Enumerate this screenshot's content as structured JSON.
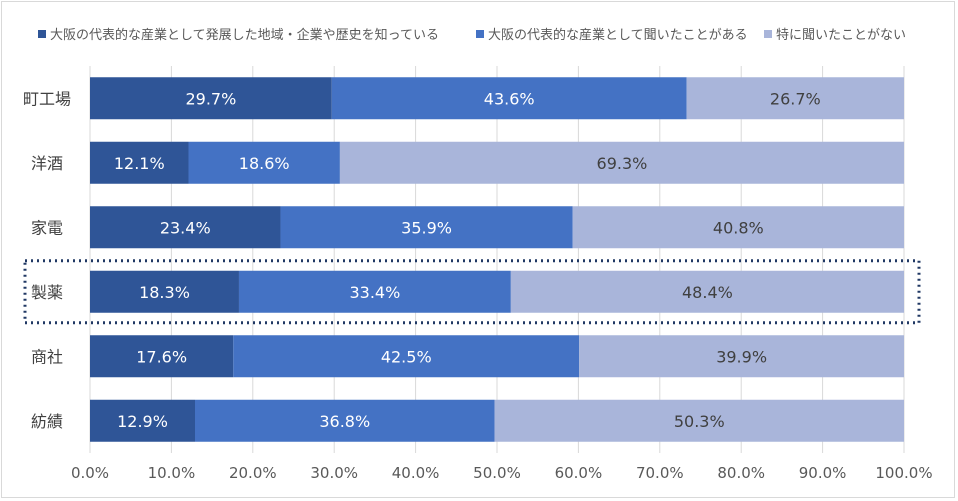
{
  "chart_data": {
    "type": "bar",
    "orientation": "horizontal",
    "stacked": "percent",
    "categories": [
      "町工場",
      "洋酒",
      "家電",
      "製薬",
      "商社",
      "紡績"
    ],
    "series": [
      {
        "name": "大阪の代表的な産業として発展した地域・企業や歴史を知っている",
        "color": "#2f5597",
        "label_color": "#ffffff",
        "values": [
          29.7,
          12.1,
          23.4,
          18.3,
          17.6,
          12.9
        ]
      },
      {
        "name": "大阪の代表的な産業として聞いたことがある",
        "color": "#4472c4",
        "label_color": "#ffffff",
        "values": [
          43.6,
          18.6,
          35.9,
          33.4,
          42.5,
          36.8
        ]
      },
      {
        "name": "特に聞いたことがない",
        "color": "#a9b5da",
        "label_color": "#404040",
        "values": [
          26.7,
          69.3,
          40.8,
          48.4,
          39.9,
          50.3
        ]
      }
    ],
    "data_labels": [
      [
        "29.7%",
        "43.6%",
        "26.7%"
      ],
      [
        "12.1%",
        "18.6%",
        "69.3%"
      ],
      [
        "23.4%",
        "35.9%",
        "40.8%"
      ],
      [
        "18.3%",
        "33.4%",
        "48.4%"
      ],
      [
        "17.6%",
        "42.5%",
        "39.9%"
      ],
      [
        "12.9%",
        "36.8%",
        "50.3%"
      ]
    ],
    "x_ticks": [
      "0.0%",
      "10.0%",
      "20.0%",
      "30.0%",
      "40.0%",
      "50.0%",
      "60.0%",
      "70.0%",
      "80.0%",
      "90.0%",
      "100.0%"
    ],
    "xlim": [
      0,
      100
    ],
    "grid": true,
    "legend_position": "top",
    "highlighted_category": "製薬",
    "highlight_color": "#203864"
  }
}
